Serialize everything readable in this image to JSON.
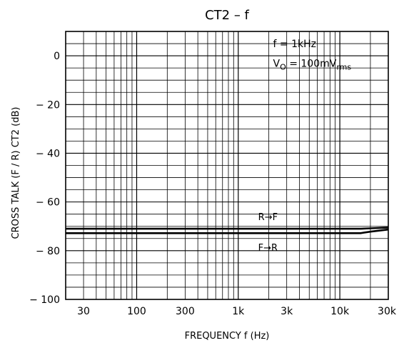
{
  "chart_data": {
    "type": "line",
    "title": "CT2  –  f",
    "xlabel": "FREQUENCY   f   (Hz)",
    "ylabel": "CROSS TALK  (F / R)    CT2    (dB)",
    "x_scale": "log",
    "xlim": [
      20,
      30000
    ],
    "ylim": [
      -100,
      10
    ],
    "x_ticks": [
      {
        "value": 30,
        "label": "30"
      },
      {
        "value": 100,
        "label": "100"
      },
      {
        "value": 300,
        "label": "300"
      },
      {
        "value": 1000,
        "label": "1k"
      },
      {
        "value": 3000,
        "label": "3k"
      },
      {
        "value": 10000,
        "label": "10k"
      },
      {
        "value": 30000,
        "label": "30k"
      }
    ],
    "y_ticks": [
      {
        "value": 0,
        "label": "0"
      },
      {
        "value": -20,
        "label": "− 20"
      },
      {
        "value": -40,
        "label": "− 40"
      },
      {
        "value": -60,
        "label": "− 60"
      },
      {
        "value": -80,
        "label": "− 80"
      },
      {
        "value": -100,
        "label": "− 100"
      }
    ],
    "grid": true,
    "conditions": [
      {
        "label": "f = 1kHz",
        "x": 2200,
        "y": 3.5
      },
      {
        "label": "V",
        "sub": "O",
        "rest": " = 100mV",
        "sub2": "rms",
        "x": 2200,
        "y": -4.5
      }
    ],
    "series": [
      {
        "name": "R→F",
        "x": [
          20,
          1000,
          10000,
          16000,
          20000,
          30000
        ],
        "y": [
          -71.0,
          -71.0,
          -71.0,
          -71.0,
          -70.8,
          -70.5
        ],
        "label_x": 3000,
        "label_y": -67.5
      },
      {
        "name": "F→R",
        "x": [
          20,
          1000,
          10000,
          16000,
          20000,
          30000
        ],
        "y": [
          -72.8,
          -72.8,
          -72.8,
          -72.8,
          -72.2,
          -71.3
        ],
        "label_x": 3000,
        "label_y": -80.0
      }
    ]
  }
}
